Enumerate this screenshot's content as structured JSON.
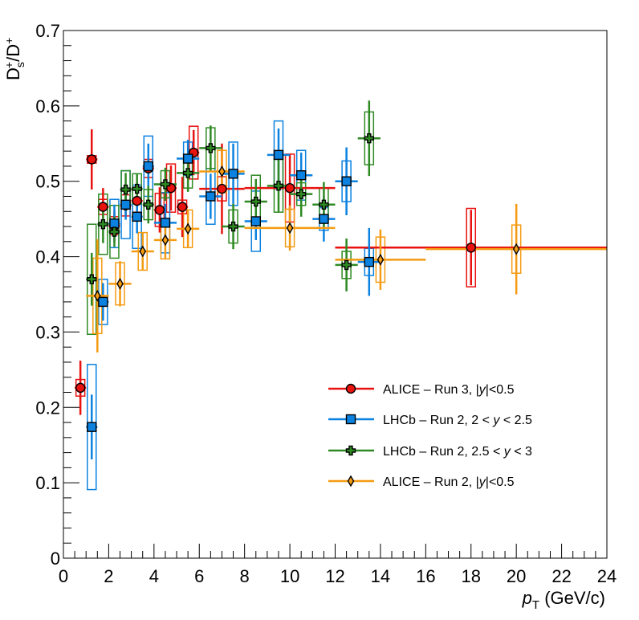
{
  "chart_data": {
    "type": "scatter",
    "xlabel": "p_T (GeV/c)",
    "xlabel_parts": {
      "symbol": "p",
      "subscript": "T",
      "unit": " (GeV/c)"
    },
    "ylabel": "D_s^+/D^+",
    "ylabel_parts": {
      "base1": "D",
      "sub1": "s",
      "sup1": "+",
      "slash": "/",
      "base2": "D",
      "sup2": "+"
    },
    "xlim": [
      0,
      24
    ],
    "ylim": [
      0,
      0.7
    ],
    "xticks": [
      "0",
      "2",
      "4",
      "6",
      "8",
      "10",
      "12",
      "14",
      "16",
      "18",
      "20",
      "22",
      "24"
    ],
    "yticks": [
      "0",
      "0.1",
      "0.2",
      "0.3",
      "0.4",
      "0.5",
      "0.6",
      "0.7"
    ],
    "legend_position": "lower-right",
    "series": [
      {
        "name": "ALICE – Run 3, |y|<0.5",
        "legend_parts": [
          "ALICE – Run 3, |",
          "y",
          "|<0.5"
        ],
        "color": "#e8120f",
        "marker": "circle",
        "points": [
          {
            "x": 0.75,
            "xl": 0.5,
            "xh": 1.0,
            "y": 0.226,
            "stat": 0.036,
            "sys": 0.011
          },
          {
            "x": 1.25,
            "xl": 1.0,
            "xh": 1.5,
            "y": 0.529,
            "stat": 0.04,
            "sys": 0.005
          },
          {
            "x": 1.75,
            "xl": 1.5,
            "xh": 2.0,
            "y": 0.466,
            "stat": 0.025,
            "sys": 0.01
          },
          {
            "x": 2.25,
            "xl": 2.0,
            "xh": 2.5,
            "y": 0.441,
            "stat": 0.02,
            "sys": 0.012
          },
          {
            "x": 2.75,
            "xl": 2.5,
            "xh": 3.0,
            "y": 0.468,
            "stat": 0.015,
            "sys": 0.014
          },
          {
            "x": 3.25,
            "xl": 3.0,
            "xh": 3.5,
            "y": 0.474,
            "stat": 0.025,
            "sys": 0.015
          },
          {
            "x": 3.75,
            "xl": 3.5,
            "xh": 4.0,
            "y": 0.517,
            "stat": 0.015,
            "sys": 0.012
          },
          {
            "x": 4.25,
            "xl": 4.0,
            "xh": 4.5,
            "y": 0.462,
            "stat": 0.03,
            "sys": 0.022
          },
          {
            "x": 4.75,
            "xl": 4.5,
            "xh": 5.0,
            "y": 0.491,
            "stat": 0.03,
            "sys": 0.032
          },
          {
            "x": 5.25,
            "xl": 5.0,
            "xh": 5.5,
            "y": 0.466,
            "stat": 0.04,
            "sys": 0.009
          },
          {
            "x": 5.75,
            "xl": 5.5,
            "xh": 6.0,
            "y": 0.538,
            "stat": 0.03,
            "sys": 0.035
          },
          {
            "x": 7.0,
            "xl": 6.0,
            "xh": 8.0,
            "y": 0.49,
            "stat": 0.06,
            "sys": 0.016
          },
          {
            "x": 10.0,
            "xl": 8.0,
            "xh": 12.0,
            "y": 0.491,
            "stat": 0.045,
            "sys": 0.045
          },
          {
            "x": 18.0,
            "xl": 12.0,
            "xh": 24.0,
            "y": 0.412,
            "stat": 0.05,
            "sys": 0.052
          }
        ]
      },
      {
        "name": "LHCb – Run 2, 2 < y < 2.5",
        "legend_parts": [
          "LHCb – Run 2, 2 < ",
          "y",
          " < 2.5"
        ],
        "color": "#0b82e0",
        "marker": "square",
        "points": [
          {
            "x": 1.25,
            "xl": 1.0,
            "xh": 1.5,
            "y": 0.174,
            "stat": 0.043,
            "sys": 0.083
          },
          {
            "x": 1.75,
            "xl": 1.5,
            "xh": 2.0,
            "y": 0.34,
            "stat": 0.025,
            "sys": 0.03
          },
          {
            "x": 2.25,
            "xl": 2.0,
            "xh": 2.5,
            "y": 0.444,
            "stat": 0.025,
            "sys": 0.032
          },
          {
            "x": 2.75,
            "xl": 2.5,
            "xh": 3.0,
            "y": 0.469,
            "stat": 0.02,
            "sys": 0.045
          },
          {
            "x": 3.25,
            "xl": 3.0,
            "xh": 3.5,
            "y": 0.453,
            "stat": 0.022,
            "sys": 0.042
          },
          {
            "x": 3.75,
            "xl": 3.5,
            "xh": 4.0,
            "y": 0.52,
            "stat": 0.03,
            "sys": 0.04
          },
          {
            "x": 4.5,
            "xl": 4.0,
            "xh": 5.0,
            "y": 0.445,
            "stat": 0.025,
            "sys": 0.04
          },
          {
            "x": 5.5,
            "xl": 5.0,
            "xh": 6.0,
            "y": 0.53,
            "stat": 0.025,
            "sys": 0.022
          },
          {
            "x": 6.5,
            "xl": 6.0,
            "xh": 7.0,
            "y": 0.48,
            "stat": 0.03,
            "sys": 0.037
          },
          {
            "x": 7.5,
            "xl": 7.0,
            "xh": 8.0,
            "y": 0.51,
            "stat": 0.04,
            "sys": 0.042
          },
          {
            "x": 8.5,
            "xl": 8.0,
            "xh": 9.0,
            "y": 0.447,
            "stat": 0.025,
            "sys": 0.04
          },
          {
            "x": 9.5,
            "xl": 9.0,
            "xh": 10.0,
            "y": 0.535,
            "stat": 0.035,
            "sys": 0.045
          },
          {
            "x": 10.5,
            "xl": 10.0,
            "xh": 11.0,
            "y": 0.508,
            "stat": 0.03,
            "sys": 0.033
          },
          {
            "x": 11.5,
            "xl": 11.0,
            "xh": 12.0,
            "y": 0.45,
            "stat": 0.03,
            "sys": 0.015
          },
          {
            "x": 12.5,
            "xl": 12.0,
            "xh": 13.0,
            "y": 0.5,
            "stat": 0.045,
            "sys": 0.027
          },
          {
            "x": 13.5,
            "xl": 13.0,
            "xh": 14.0,
            "y": 0.393,
            "stat": 0.045,
            "sys": 0.018
          }
        ]
      },
      {
        "name": "LHCb – Run 2, 2.5 < y < 3",
        "legend_parts": [
          "LHCb – Run 2, 2.5 < ",
          "y",
          " < 3"
        ],
        "color": "#2e8a22",
        "marker": "cross",
        "points": [
          {
            "x": 1.25,
            "xl": 1.0,
            "xh": 1.5,
            "y": 0.37,
            "stat": 0.035,
            "sys": 0.073
          },
          {
            "x": 1.75,
            "xl": 1.5,
            "xh": 2.0,
            "y": 0.443,
            "stat": 0.025,
            "sys": 0.04
          },
          {
            "x": 2.25,
            "xl": 2.0,
            "xh": 2.5,
            "y": 0.433,
            "stat": 0.02,
            "sys": 0.035
          },
          {
            "x": 2.75,
            "xl": 2.5,
            "xh": 3.0,
            "y": 0.489,
            "stat": 0.022,
            "sys": 0.025
          },
          {
            "x": 3.25,
            "xl": 3.0,
            "xh": 3.5,
            "y": 0.49,
            "stat": 0.02,
            "sys": 0.02
          },
          {
            "x": 3.75,
            "xl": 3.5,
            "xh": 4.0,
            "y": 0.469,
            "stat": 0.025,
            "sys": 0.02
          },
          {
            "x": 4.5,
            "xl": 4.0,
            "xh": 5.0,
            "y": 0.496,
            "stat": 0.022,
            "sys": 0.018
          },
          {
            "x": 5.5,
            "xl": 5.0,
            "xh": 6.0,
            "y": 0.511,
            "stat": 0.025,
            "sys": 0.02
          },
          {
            "x": 6.5,
            "xl": 6.0,
            "xh": 7.0,
            "y": 0.544,
            "stat": 0.03,
            "sys": 0.027
          },
          {
            "x": 7.5,
            "xl": 7.0,
            "xh": 8.0,
            "y": 0.44,
            "stat": 0.03,
            "sys": 0.022
          },
          {
            "x": 8.5,
            "xl": 8.0,
            "xh": 9.0,
            "y": 0.473,
            "stat": 0.03,
            "sys": 0.035
          },
          {
            "x": 9.5,
            "xl": 9.0,
            "xh": 10.0,
            "y": 0.494,
            "stat": 0.035,
            "sys": 0.035
          },
          {
            "x": 10.5,
            "xl": 10.0,
            "xh": 11.0,
            "y": 0.483,
            "stat": 0.03,
            "sys": 0.015
          },
          {
            "x": 11.5,
            "xl": 11.0,
            "xh": 12.0,
            "y": 0.469,
            "stat": 0.03,
            "sys": 0.022
          },
          {
            "x": 12.5,
            "xl": 12.0,
            "xh": 13.0,
            "y": 0.389,
            "stat": 0.035,
            "sys": 0.018
          },
          {
            "x": 13.5,
            "xl": 13.0,
            "xh": 14.0,
            "y": 0.557,
            "stat": 0.05,
            "sys": 0.035
          }
        ]
      },
      {
        "name": "ALICE – Run 2, |y|<0.5",
        "legend_parts": [
          "ALICE – Run 2, |",
          "y",
          "|<0.5"
        ],
        "color": "#f59b12",
        "marker": "diamond",
        "points": [
          {
            "x": 1.5,
            "xl": 1.0,
            "xh": 2.0,
            "y": 0.348,
            "stat": 0.075,
            "sys": 0.05
          },
          {
            "x": 2.5,
            "xl": 2.0,
            "xh": 3.0,
            "y": 0.364,
            "stat": 0.03,
            "sys": 0.028
          },
          {
            "x": 3.5,
            "xl": 3.0,
            "xh": 4.0,
            "y": 0.407,
            "stat": 0.025,
            "sys": 0.025
          },
          {
            "x": 4.5,
            "xl": 4.0,
            "xh": 5.0,
            "y": 0.422,
            "stat": 0.025,
            "sys": 0.025
          },
          {
            "x": 5.5,
            "xl": 5.0,
            "xh": 6.0,
            "y": 0.437,
            "stat": 0.025,
            "sys": 0.025
          },
          {
            "x": 7.0,
            "xl": 6.0,
            "xh": 8.0,
            "y": 0.513,
            "stat": 0.03,
            "sys": 0.028
          },
          {
            "x": 10.0,
            "xl": 8.0,
            "xh": 12.0,
            "y": 0.438,
            "stat": 0.03,
            "sys": 0.025
          },
          {
            "x": 14.0,
            "xl": 12.0,
            "xh": 16.0,
            "y": 0.396,
            "stat": 0.04,
            "sys": 0.03
          },
          {
            "x": 20.0,
            "xl": 16.0,
            "xh": 24.0,
            "y": 0.41,
            "stat": 0.06,
            "sys": 0.032
          }
        ]
      }
    ]
  }
}
